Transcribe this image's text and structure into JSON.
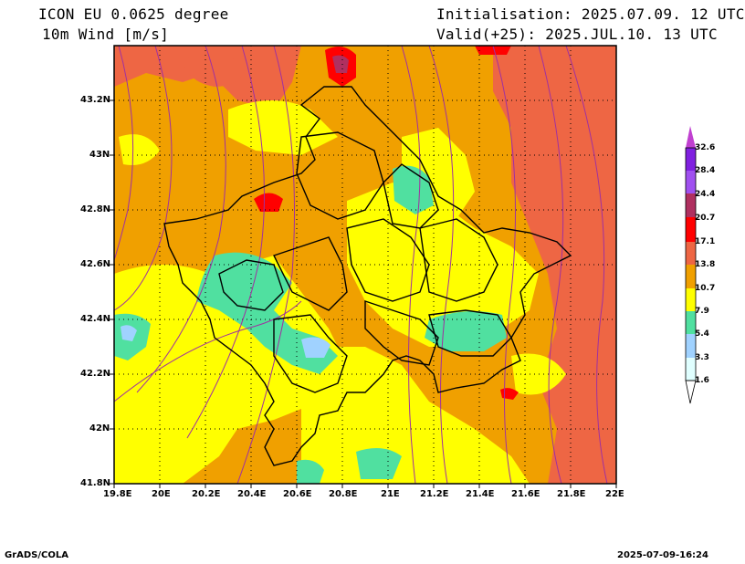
{
  "header": {
    "model": "ICON EU 0.0625 degree",
    "variable": "10m Wind [m/s]",
    "init": "Initialisation: 2025.07.09. 12 UTC",
    "valid": "Valid(+25): 2025.JUL.10. 13 UTC"
  },
  "axes": {
    "lon_ticks": [
      "19.8E",
      "20E",
      "20.2E",
      "20.4E",
      "20.6E",
      "20.8E",
      "21E",
      "21.2E",
      "21.4E",
      "21.6E",
      "21.8E",
      "22E"
    ],
    "lat_ticks": [
      "43.2N",
      "43N",
      "42.8N",
      "42.6N",
      "42.4N",
      "42.2N",
      "42N",
      "41.8N"
    ]
  },
  "colorbar": {
    "labels": [
      "32.6",
      "28.4",
      "24.4",
      "20.7",
      "17.1",
      "13.8",
      "10.7",
      "7.9",
      "5.4",
      "3.3",
      "1.6"
    ],
    "colors": {
      "c1": "#e0ffff",
      "c2": "#a0d2ff",
      "c3": "#50e0a0",
      "c4": "#ffff00",
      "c5": "#f0a000",
      "c6": "#ee6644",
      "c7": "#ff0000",
      "c8": "#b03060",
      "c9": "#a050f0",
      "c10": "#8020e0",
      "c11": "#c040d0"
    }
  },
  "footer": {
    "left": "GrADS/COLA",
    "right": "2025-07-09-16:24"
  }
}
